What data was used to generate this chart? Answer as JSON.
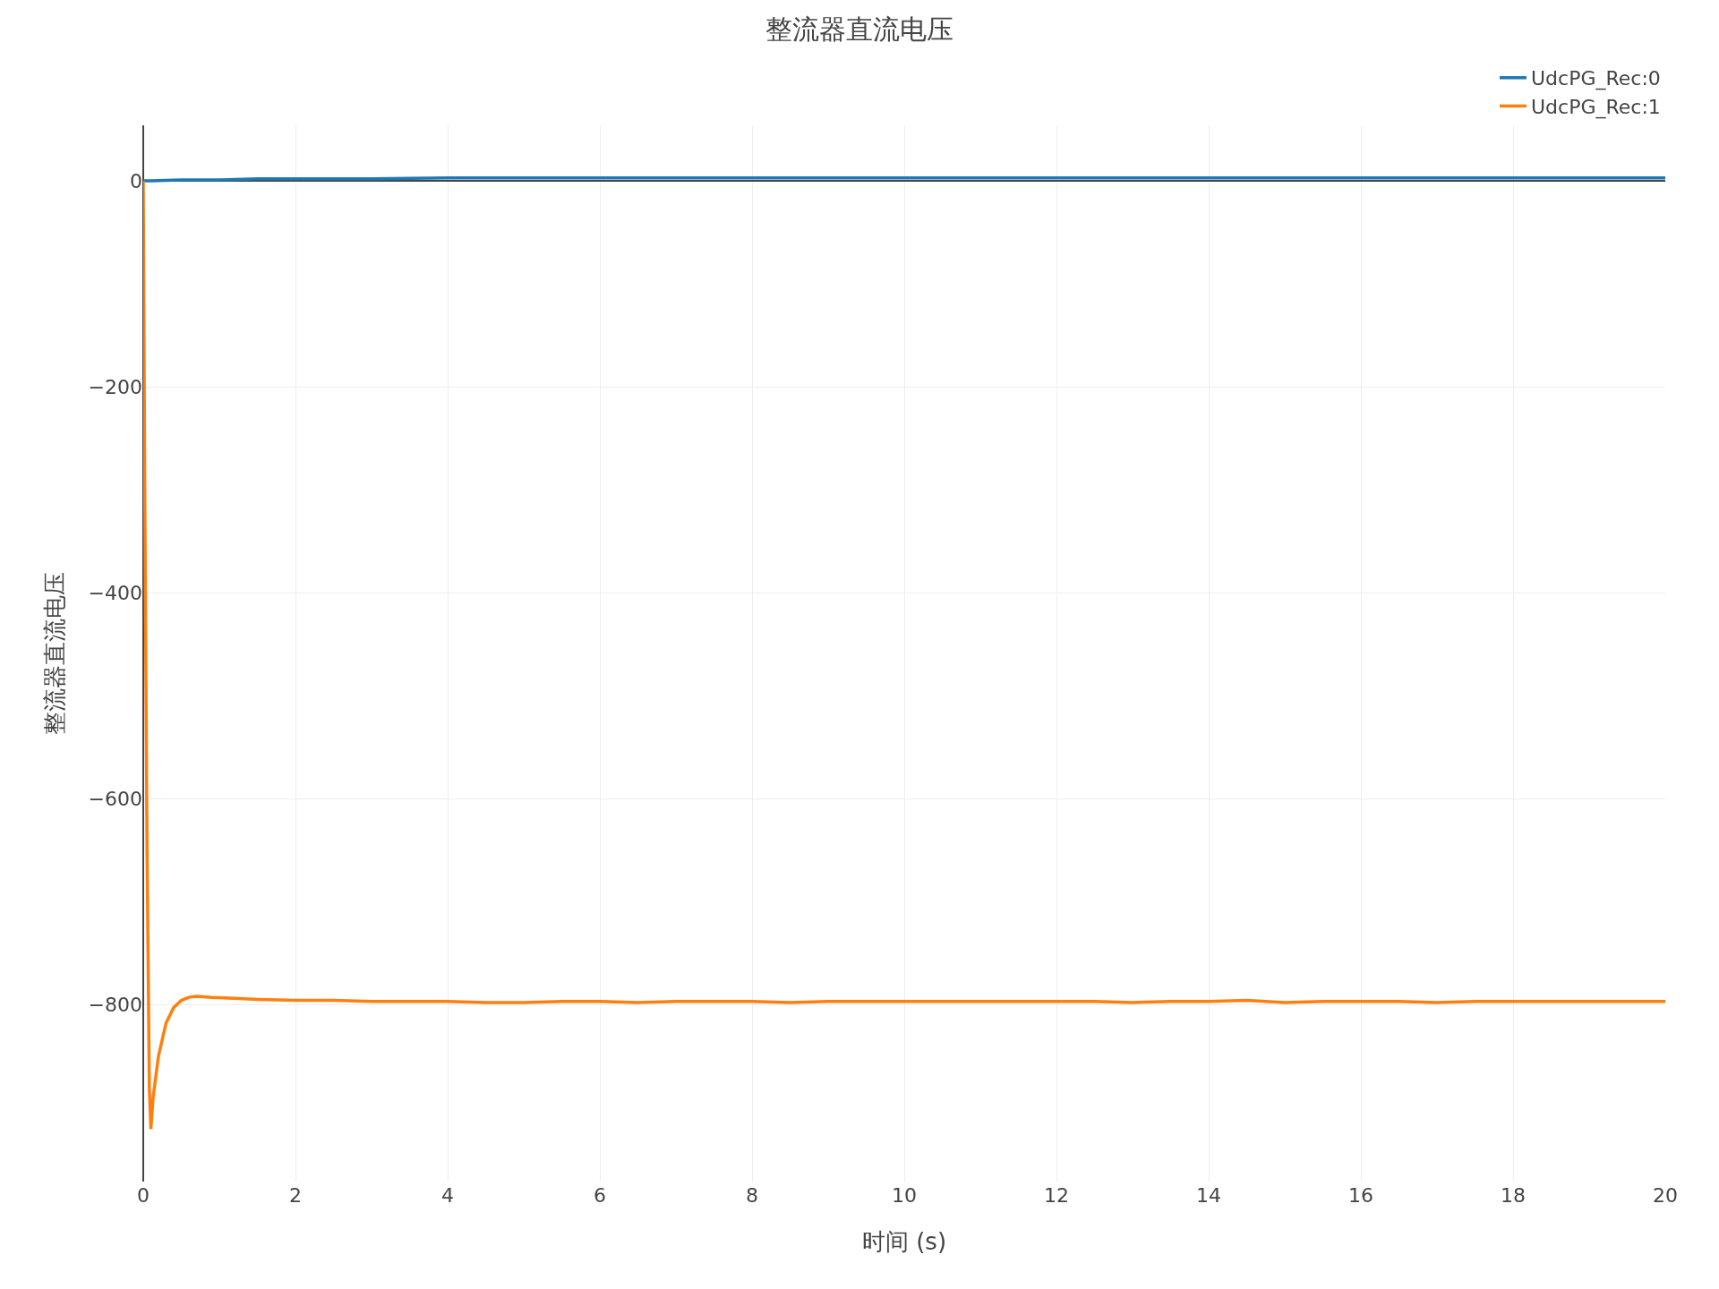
{
  "chart_data": {
    "type": "line",
    "title": "整流器直流电压",
    "xlabel": "时间 (s)",
    "ylabel": "整流器直流电压",
    "xlim": [
      0,
      20
    ],
    "xticks": [
      0,
      2,
      4,
      6,
      8,
      10,
      12,
      14,
      16,
      18,
      20
    ],
    "ylim": [
      -972,
      54
    ],
    "yticks": [
      -800,
      -600,
      -400,
      -200,
      0
    ],
    "grid": true,
    "legend": "top right",
    "line_style": "solid",
    "marker": "none",
    "series": [
      {
        "name": "UdcPG_Rec:0",
        "color": "#1f77b4",
        "x": [
          0,
          0.1,
          0.5,
          1,
          1.5,
          2,
          3,
          4,
          6,
          8,
          10,
          12,
          14,
          16,
          18,
          20
        ],
        "values": [
          0,
          0,
          1,
          1,
          2,
          2,
          2,
          3,
          3,
          3,
          3,
          3,
          3,
          3,
          3,
          3
        ]
      },
      {
        "name": "UdcPG_Rec:1",
        "color": "#ff7f0e",
        "x": [
          0,
          0.02,
          0.05,
          0.08,
          0.1,
          0.13,
          0.2,
          0.3,
          0.4,
          0.5,
          0.6,
          0.7,
          0.9,
          1.2,
          1.5,
          2,
          2.5,
          3,
          3.5,
          4,
          4.5,
          5,
          5.5,
          6,
          6.5,
          7,
          7.5,
          8,
          8.5,
          9,
          9.5,
          10,
          10.5,
          11,
          11.5,
          12,
          12.5,
          13,
          13.5,
          14,
          14.5,
          15,
          15.5,
          16,
          16.5,
          17,
          17.5,
          18,
          18.5,
          19,
          19.5,
          20
        ],
        "values": [
          0,
          -300,
          -650,
          -880,
          -921,
          -890,
          -850,
          -818,
          -803,
          -796,
          -793,
          -792,
          -793,
          -794,
          -795,
          -796,
          -796,
          -797,
          -797,
          -797,
          -798,
          -798,
          -797,
          -797,
          -798,
          -797,
          -797,
          -797,
          -798,
          -797,
          -797,
          -797,
          -797,
          -797,
          -797,
          -797,
          -797,
          -798,
          -797,
          -797,
          -796,
          -798,
          -797,
          -797,
          -797,
          -798,
          -797,
          -797,
          -797,
          -797,
          -797,
          -797
        ]
      }
    ]
  }
}
